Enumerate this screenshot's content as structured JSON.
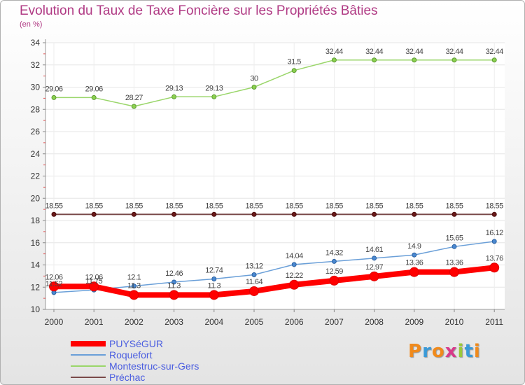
{
  "chart_data": {
    "type": "line",
    "title": "Evolution du Taux de Taxe Foncière sur les Propriétés Bâties",
    "ylabel": "(en %)",
    "xlabel": "",
    "ylim": [
      10,
      34
    ],
    "yticks": [
      10,
      12,
      14,
      16,
      18,
      20,
      22,
      24,
      26,
      28,
      30,
      32,
      34
    ],
    "categories": [
      "2000",
      "2001",
      "2002",
      "2003",
      "2004",
      "2005",
      "2006",
      "2007",
      "2008",
      "2009",
      "2010",
      "2011"
    ],
    "series": [
      {
        "name": "PUYSéGUR",
        "color": "#ff0000",
        "values": [
          12.06,
          12.06,
          11.3,
          11.3,
          11.3,
          11.64,
          12.22,
          12.59,
          12.97,
          13.36,
          13.36,
          13.76
        ],
        "labels": [
          "12.06",
          "12.06",
          "11.3",
          "11.3",
          "11.3",
          "11.64",
          "12.22",
          "12.59",
          "12.97",
          "13.36",
          "13.36",
          "13.76"
        ]
      },
      {
        "name": "Roquefort",
        "color": "#6a9fd8",
        "values": [
          11.52,
          11.75,
          12.1,
          12.46,
          12.74,
          13.12,
          14.04,
          14.32,
          14.61,
          14.9,
          15.65,
          16.12
        ],
        "labels": [
          "11.52",
          "11.75",
          "12.1",
          "12.46",
          "12.74",
          "13.12",
          "14.04",
          "14.32",
          "14.61",
          "14.9",
          "15.65",
          "16.12"
        ]
      },
      {
        "name": "Montestruc-sur-Gers",
        "color": "#9ad66a",
        "values": [
          29.06,
          29.06,
          28.27,
          29.13,
          29.13,
          30,
          31.5,
          32.44,
          32.44,
          32.44,
          32.44,
          32.44
        ],
        "labels": [
          "29.06",
          "29.06",
          "28.27",
          "29.13",
          "29.13",
          "30",
          "31.5",
          "32.44",
          "32.44",
          "32.44",
          "32.44",
          "32.44"
        ]
      },
      {
        "name": "Préchac",
        "color": "#7a4a4a",
        "values": [
          18.55,
          18.55,
          18.55,
          18.55,
          18.55,
          18.55,
          18.55,
          18.55,
          18.55,
          18.55,
          18.55,
          18.55
        ],
        "labels": [
          "18.55",
          "18.55",
          "18.55",
          "18.55",
          "18.55",
          "18.55",
          "18.55",
          "18.55",
          "18.55",
          "18.55",
          "18.55",
          "18.55"
        ]
      }
    ],
    "legend": "bottom-left"
  },
  "logo": {
    "text": "Proxiti"
  }
}
